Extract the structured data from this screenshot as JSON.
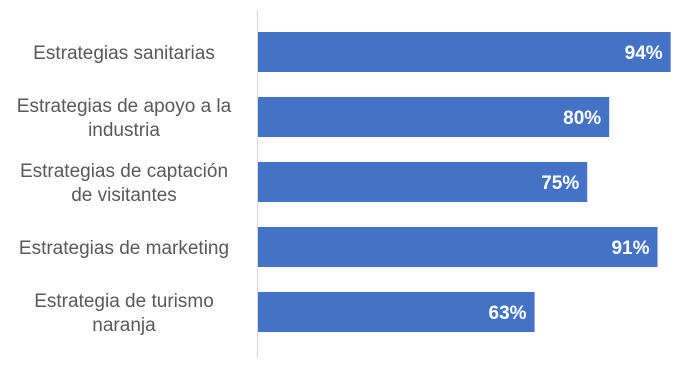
{
  "chart_data": {
    "type": "bar",
    "orientation": "horizontal",
    "categories": [
      [
        "Estrategias sanitarias"
      ],
      [
        "Estrategias de apoyo a la",
        "industria"
      ],
      [
        "Estrategias de captación",
        "de visitantes"
      ],
      [
        "Estrategias de marketing"
      ],
      [
        "Estrategia de turismo",
        "naranja"
      ]
    ],
    "values": [
      94,
      80,
      75,
      91,
      63
    ],
    "value_labels": [
      "94%",
      "80%",
      "75%",
      "91%",
      "63%"
    ],
    "bar_color": "#4472C4",
    "label_color": "#595959",
    "value_label_color": "#FFFFFF",
    "xlim": [
      0,
      100
    ],
    "grid": false,
    "legend": "none",
    "title": "",
    "xlabel": "",
    "ylabel": ""
  }
}
